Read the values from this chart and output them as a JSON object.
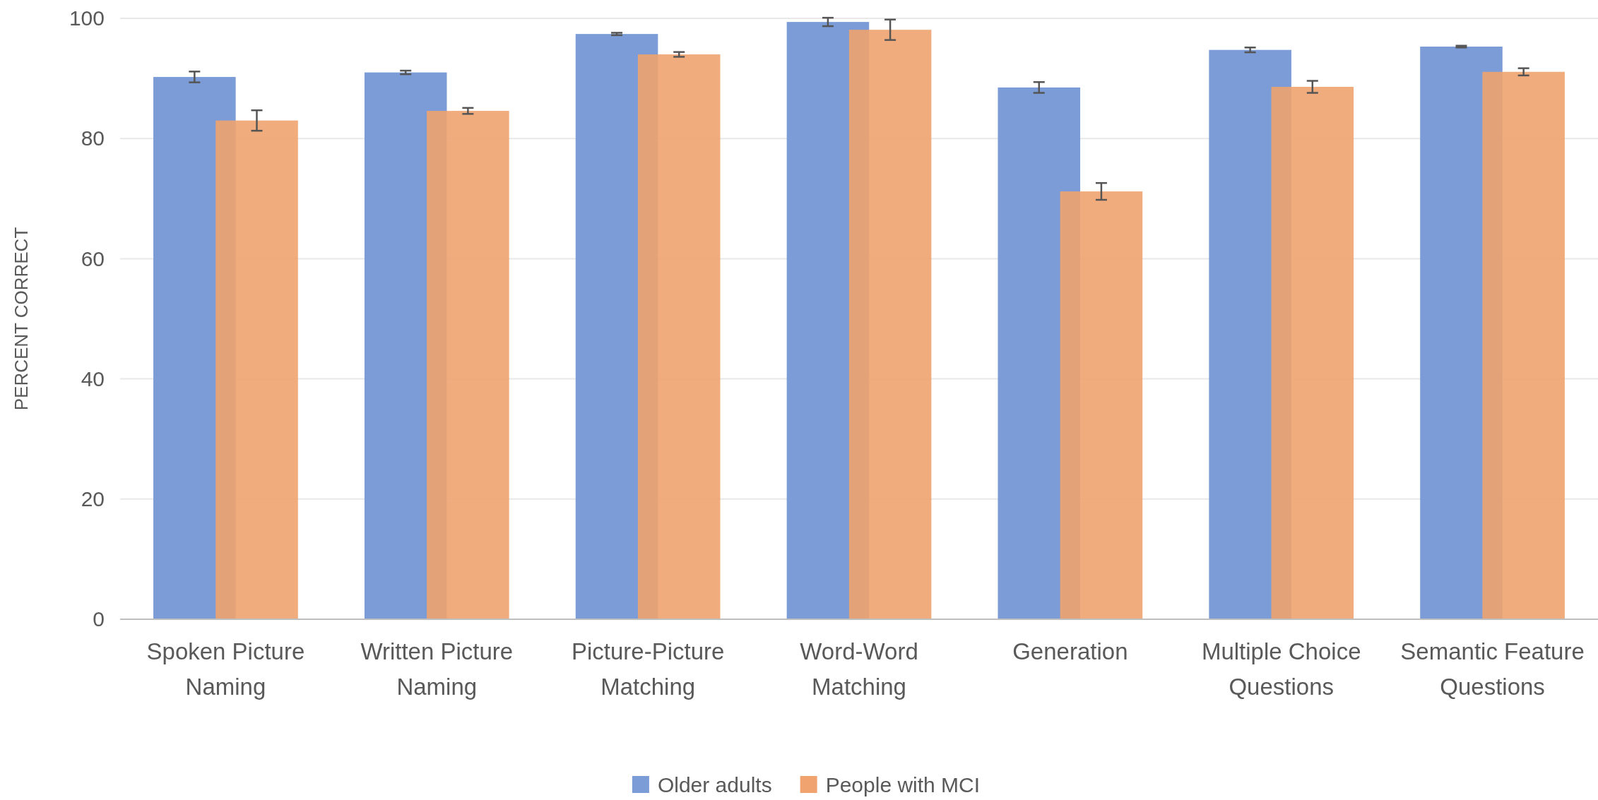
{
  "chart_data": {
    "type": "bar",
    "ylabel": "PERCENT CORRECT",
    "categories": [
      "Spoken Picture Naming",
      "Written Picture Naming",
      "Picture-Picture Matching",
      "Word-Word Matching",
      "Generation",
      "Multiple Choice Questions",
      "Semantic Feature Questions"
    ],
    "series": [
      {
        "name": "Older adults",
        "color": "#7b9cd6",
        "values": [
          90.25,
          91.0,
          97.4,
          99.4,
          88.5,
          94.75,
          95.3
        ],
        "errors": [
          0.9,
          0.3,
          0.2,
          0.7,
          0.9,
          0.4,
          0.15
        ]
      },
      {
        "name": "People with MCI",
        "color": "#f0a36f",
        "values": [
          83.0,
          84.6,
          94.0,
          98.1,
          71.2,
          88.6,
          91.1
        ],
        "errors": [
          1.7,
          0.5,
          0.4,
          1.7,
          1.4,
          1.0,
          0.6
        ]
      }
    ],
    "ylim": [
      0,
      100
    ],
    "yticks": [
      0,
      20,
      40,
      60,
      80,
      100
    ],
    "grid": "y",
    "legend": "bottom"
  }
}
